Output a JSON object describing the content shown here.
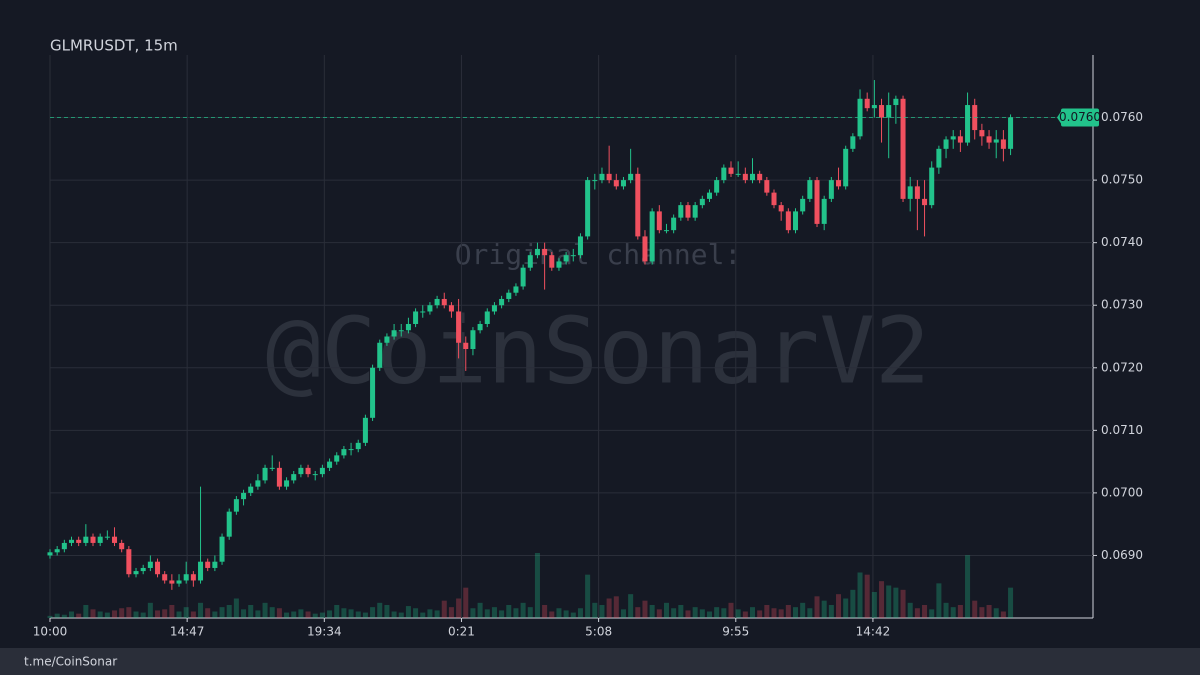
{
  "chart_data": {
    "type": "candlestick",
    "title": "GLMRUSDT, 15m",
    "watermark": [
      "Original channel:",
      "@CoinSonarV2"
    ],
    "footer": "t.me/CoinSonar",
    "up_color": "#22c38b",
    "down_color": "#f0505f",
    "ylim": [
      0.068,
      0.077
    ],
    "yticks": [
      {
        "value": 0.069,
        "label": "0.0690"
      },
      {
        "value": 0.07,
        "label": "0.0700"
      },
      {
        "value": 0.071,
        "label": "0.0710"
      },
      {
        "value": 0.072,
        "label": "0.0720"
      },
      {
        "value": 0.073,
        "label": "0.0730"
      },
      {
        "value": 0.074,
        "label": "0.0740"
      },
      {
        "value": 0.075,
        "label": "0.0750"
      },
      {
        "value": 0.076,
        "label": "0.0760"
      }
    ],
    "xlim": [
      0,
      145.5
    ],
    "xticks": [
      {
        "value": 0,
        "label": "10:00"
      },
      {
        "value": 19.133,
        "label": "14:47"
      },
      {
        "value": 38.267,
        "label": "19:34"
      },
      {
        "value": 57.4,
        "label": "0:21"
      },
      {
        "value": 76.533,
        "label": "5:08"
      },
      {
        "value": 95.667,
        "label": "9:55"
      },
      {
        "value": 114.8,
        "label": "14:42"
      }
    ],
    "grid": true,
    "last_price": {
      "value": 0.076,
      "label": "0.0760"
    },
    "ohlc": [
      [
        0.069,
        0.0691,
        0.06895,
        0.06905
      ],
      [
        0.06905,
        0.06915,
        0.069,
        0.0691
      ],
      [
        0.0691,
        0.06925,
        0.06905,
        0.0692
      ],
      [
        0.0692,
        0.0693,
        0.06915,
        0.06925
      ],
      [
        0.06925,
        0.0693,
        0.06915,
        0.0692
      ],
      [
        0.0692,
        0.0695,
        0.06915,
        0.0693
      ],
      [
        0.0693,
        0.06935,
        0.06915,
        0.0692
      ],
      [
        0.0692,
        0.06935,
        0.06915,
        0.0693
      ],
      [
        0.0693,
        0.0694,
        0.06925,
        0.0693
      ],
      [
        0.0693,
        0.06945,
        0.06915,
        0.0692
      ],
      [
        0.0692,
        0.06925,
        0.06905,
        0.0691
      ],
      [
        0.0691,
        0.06915,
        0.06865,
        0.0687
      ],
      [
        0.0687,
        0.0688,
        0.06865,
        0.06875
      ],
      [
        0.06875,
        0.06885,
        0.0687,
        0.0688
      ],
      [
        0.0688,
        0.069,
        0.06875,
        0.0689
      ],
      [
        0.0689,
        0.06895,
        0.06865,
        0.0687
      ],
      [
        0.0687,
        0.06875,
        0.06855,
        0.0686
      ],
      [
        0.0686,
        0.0687,
        0.06845,
        0.06855
      ],
      [
        0.06855,
        0.0687,
        0.0685,
        0.0686
      ],
      [
        0.0686,
        0.0689,
        0.06855,
        0.0687
      ],
      [
        0.0687,
        0.06875,
        0.0685,
        0.0686
      ],
      [
        0.0686,
        0.0701,
        0.06855,
        0.0689
      ],
      [
        0.0689,
        0.06895,
        0.06875,
        0.0688
      ],
      [
        0.0688,
        0.069,
        0.06875,
        0.0689
      ],
      [
        0.0689,
        0.06935,
        0.06885,
        0.0693
      ],
      [
        0.0693,
        0.06975,
        0.06925,
        0.0697
      ],
      [
        0.0697,
        0.06995,
        0.06965,
        0.0699
      ],
      [
        0.0699,
        0.07005,
        0.0698,
        0.07
      ],
      [
        0.07,
        0.07015,
        0.06995,
        0.0701
      ],
      [
        0.0701,
        0.0703,
        0.07005,
        0.0702
      ],
      [
        0.0702,
        0.07045,
        0.07015,
        0.0704
      ],
      [
        0.0704,
        0.0706,
        0.07035,
        0.0704
      ],
      [
        0.0704,
        0.0705,
        0.07005,
        0.0701
      ],
      [
        0.0701,
        0.07025,
        0.07005,
        0.0702
      ],
      [
        0.0702,
        0.07035,
        0.07015,
        0.0703
      ],
      [
        0.0703,
        0.07045,
        0.07025,
        0.0704
      ],
      [
        0.0704,
        0.07045,
        0.07025,
        0.0703
      ],
      [
        0.0703,
        0.07035,
        0.0702,
        0.0703
      ],
      [
        0.0703,
        0.07045,
        0.07025,
        0.0704
      ],
      [
        0.0704,
        0.07055,
        0.07035,
        0.0705
      ],
      [
        0.0705,
        0.07065,
        0.07045,
        0.0706
      ],
      [
        0.0706,
        0.07075,
        0.07055,
        0.0707
      ],
      [
        0.0707,
        0.0708,
        0.0706,
        0.0707
      ],
      [
        0.0707,
        0.07085,
        0.07065,
        0.0708
      ],
      [
        0.0708,
        0.07125,
        0.07075,
        0.0712
      ],
      [
        0.0712,
        0.07205,
        0.07115,
        0.072
      ],
      [
        0.072,
        0.07245,
        0.07195,
        0.0724
      ],
      [
        0.0724,
        0.07255,
        0.07235,
        0.0725
      ],
      [
        0.0725,
        0.0727,
        0.07245,
        0.0726
      ],
      [
        0.0726,
        0.0727,
        0.0725,
        0.0726
      ],
      [
        0.0726,
        0.0728,
        0.07255,
        0.0727
      ],
      [
        0.0727,
        0.07295,
        0.07265,
        0.0729
      ],
      [
        0.0729,
        0.073,
        0.0728,
        0.0729
      ],
      [
        0.0729,
        0.07305,
        0.07285,
        0.073
      ],
      [
        0.073,
        0.07315,
        0.07295,
        0.0731
      ],
      [
        0.0731,
        0.0732,
        0.07295,
        0.073
      ],
      [
        0.073,
        0.07305,
        0.0728,
        0.0729
      ],
      [
        0.0729,
        0.0731,
        0.07215,
        0.0724
      ],
      [
        0.0724,
        0.0725,
        0.07195,
        0.0723
      ],
      [
        0.0723,
        0.07265,
        0.0722,
        0.0726
      ],
      [
        0.0726,
        0.07275,
        0.07255,
        0.0727
      ],
      [
        0.0727,
        0.07295,
        0.07265,
        0.0729
      ],
      [
        0.0729,
        0.07305,
        0.07285,
        0.073
      ],
      [
        0.073,
        0.07315,
        0.07295,
        0.0731
      ],
      [
        0.0731,
        0.07325,
        0.07305,
        0.0732
      ],
      [
        0.0732,
        0.07335,
        0.07315,
        0.0733
      ],
      [
        0.0733,
        0.07365,
        0.07325,
        0.0736
      ],
      [
        0.0736,
        0.07385,
        0.07355,
        0.0738
      ],
      [
        0.0738,
        0.074,
        0.07375,
        0.0739
      ],
      [
        0.0739,
        0.074,
        0.07325,
        0.0738
      ],
      [
        0.0738,
        0.07385,
        0.07355,
        0.0736
      ],
      [
        0.0736,
        0.07375,
        0.07355,
        0.0737
      ],
      [
        0.0737,
        0.07385,
        0.07365,
        0.0738
      ],
      [
        0.0738,
        0.0739,
        0.0737,
        0.0738
      ],
      [
        0.0738,
        0.07415,
        0.07375,
        0.0741
      ],
      [
        0.0741,
        0.07505,
        0.07405,
        0.075
      ],
      [
        0.075,
        0.0751,
        0.07485,
        0.075
      ],
      [
        0.075,
        0.0752,
        0.07495,
        0.0751
      ],
      [
        0.0751,
        0.07555,
        0.07495,
        0.075
      ],
      [
        0.075,
        0.0751,
        0.07485,
        0.0749
      ],
      [
        0.0749,
        0.07505,
        0.07485,
        0.075
      ],
      [
        0.075,
        0.0755,
        0.07495,
        0.0751
      ],
      [
        0.0751,
        0.0752,
        0.07405,
        0.0741
      ],
      [
        0.0741,
        0.0742,
        0.07365,
        0.0737
      ],
      [
        0.0737,
        0.07455,
        0.07365,
        0.0745
      ],
      [
        0.0745,
        0.0746,
        0.07415,
        0.0742
      ],
      [
        0.0742,
        0.0743,
        0.07415,
        0.0742
      ],
      [
        0.0742,
        0.07445,
        0.07415,
        0.0744
      ],
      [
        0.0744,
        0.07465,
        0.07435,
        0.0746
      ],
      [
        0.0746,
        0.07465,
        0.07435,
        0.0744
      ],
      [
        0.0744,
        0.07465,
        0.07435,
        0.0746
      ],
      [
        0.0746,
        0.07475,
        0.07455,
        0.0747
      ],
      [
        0.0747,
        0.07485,
        0.07465,
        0.0748
      ],
      [
        0.0748,
        0.07505,
        0.07475,
        0.075
      ],
      [
        0.075,
        0.07525,
        0.07495,
        0.0752
      ],
      [
        0.0752,
        0.0753,
        0.07505,
        0.0751
      ],
      [
        0.0751,
        0.0753,
        0.07505,
        0.0751
      ],
      [
        0.0751,
        0.0752,
        0.07495,
        0.075
      ],
      [
        0.075,
        0.07535,
        0.07495,
        0.0751
      ],
      [
        0.0751,
        0.07515,
        0.07495,
        0.075
      ],
      [
        0.075,
        0.07505,
        0.07475,
        0.0748
      ],
      [
        0.0748,
        0.07485,
        0.07455,
        0.0746
      ],
      [
        0.0746,
        0.07465,
        0.07435,
        0.0745
      ],
      [
        0.0745,
        0.07455,
        0.07415,
        0.0742
      ],
      [
        0.0742,
        0.07455,
        0.07415,
        0.0745
      ],
      [
        0.0745,
        0.07475,
        0.07445,
        0.0747
      ],
      [
        0.0747,
        0.07505,
        0.07465,
        0.075
      ],
      [
        0.075,
        0.07505,
        0.07425,
        0.0743
      ],
      [
        0.0743,
        0.07475,
        0.0742,
        0.0747
      ],
      [
        0.0747,
        0.07505,
        0.07465,
        0.075
      ],
      [
        0.075,
        0.0752,
        0.07485,
        0.0749
      ],
      [
        0.0749,
        0.07555,
        0.07485,
        0.0755
      ],
      [
        0.0755,
        0.07575,
        0.07545,
        0.0757
      ],
      [
        0.0757,
        0.07645,
        0.07565,
        0.0763
      ],
      [
        0.0763,
        0.0764,
        0.0761,
        0.07615
      ],
      [
        0.07615,
        0.0766,
        0.076,
        0.0762
      ],
      [
        0.0762,
        0.0763,
        0.0756,
        0.076
      ],
      [
        0.076,
        0.0764,
        0.07535,
        0.0762
      ],
      [
        0.0762,
        0.07635,
        0.0759,
        0.0763
      ],
      [
        0.0763,
        0.07635,
        0.07465,
        0.0747
      ],
      [
        0.0747,
        0.07505,
        0.0745,
        0.0749
      ],
      [
        0.0749,
        0.075,
        0.0742,
        0.0747
      ],
      [
        0.0747,
        0.075,
        0.0741,
        0.0746
      ],
      [
        0.0746,
        0.0753,
        0.07455,
        0.0752
      ],
      [
        0.0752,
        0.07555,
        0.0751,
        0.0755
      ],
      [
        0.0755,
        0.0757,
        0.07535,
        0.07565
      ],
      [
        0.07565,
        0.0758,
        0.0755,
        0.0757
      ],
      [
        0.0757,
        0.0758,
        0.07545,
        0.0756
      ],
      [
        0.0756,
        0.0764,
        0.07555,
        0.0762
      ],
      [
        0.0762,
        0.0763,
        0.07565,
        0.0758
      ],
      [
        0.0758,
        0.0759,
        0.07555,
        0.0757
      ],
      [
        0.0757,
        0.0758,
        0.0755,
        0.0756
      ],
      [
        0.0756,
        0.0758,
        0.07535,
        0.07565
      ],
      [
        0.07565,
        0.0758,
        0.0753,
        0.0755
      ],
      [
        0.0755,
        0.07605,
        0.0754,
        0.076
      ]
    ],
    "volume": [
      2,
      4,
      3,
      6,
      4,
      12,
      8,
      6,
      5,
      7,
      9,
      10,
      6,
      5,
      14,
      7,
      8,
      12,
      6,
      10,
      6,
      14,
      9,
      6,
      10,
      12,
      18,
      8,
      12,
      7,
      14,
      10,
      9,
      5,
      6,
      8,
      6,
      4,
      5,
      7,
      12,
      9,
      8,
      6,
      5,
      10,
      14,
      12,
      6,
      5,
      11,
      9,
      5,
      8,
      7,
      16,
      10,
      18,
      28,
      9,
      14,
      8,
      10,
      7,
      12,
      9,
      14,
      10,
      60,
      12,
      6,
      9,
      7,
      5,
      9,
      40,
      14,
      12,
      18,
      20,
      8,
      22,
      10,
      16,
      12,
      8,
      14,
      9,
      12,
      7,
      10,
      8,
      6,
      10,
      9,
      14,
      8,
      6,
      10,
      7,
      12,
      9,
      8,
      12,
      10,
      14,
      9,
      20,
      16,
      12,
      22,
      18,
      26,
      42,
      40,
      24,
      34,
      30,
      28,
      26,
      14,
      9,
      12,
      8,
      32,
      14,
      10,
      12,
      58,
      16,
      10,
      12,
      9,
      6,
      28
    ]
  }
}
